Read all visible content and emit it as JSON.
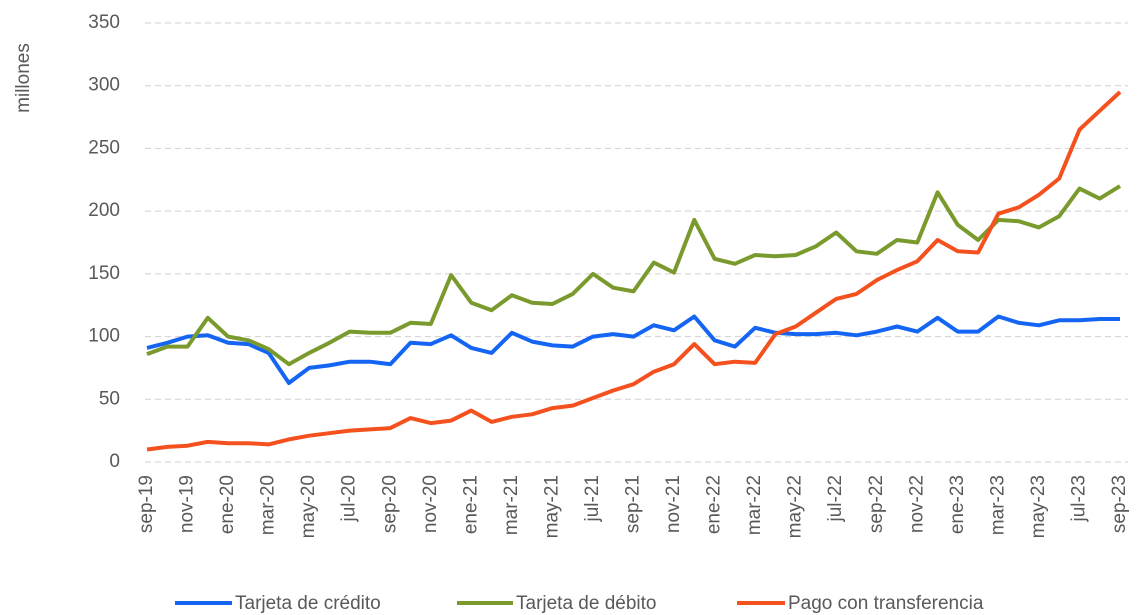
{
  "chart_data": {
    "type": "line",
    "y_label": "millones",
    "categories": [
      "sep-19",
      null,
      "nov-19",
      null,
      "ene-20",
      null,
      "mar-20",
      null,
      "may-20",
      null,
      "jul-20",
      null,
      "sep-20",
      null,
      "nov-20",
      null,
      "ene-21",
      null,
      "mar-21",
      null,
      "may-21",
      null,
      "jul-21",
      null,
      "sep-21",
      null,
      "nov-21",
      null,
      "ene-22",
      null,
      "mar-22",
      null,
      "may-22",
      null,
      "jul-22",
      null,
      "sep-22",
      null,
      "nov-22",
      null,
      "ene-23",
      null,
      "mar-23",
      null,
      "may-23",
      null,
      "jul-23",
      null,
      "sep-23"
    ],
    "series": [
      {
        "name": "Tarjeta de crédito",
        "color": "#1565f5",
        "values": [
          91,
          95,
          100,
          101,
          95,
          94,
          87,
          63,
          75,
          77,
          80,
          80,
          78,
          95,
          94,
          101,
          91,
          87,
          103,
          96,
          93,
          92,
          100,
          102,
          100,
          109,
          105,
          116,
          97,
          92,
          107,
          103,
          102,
          102,
          103,
          101,
          104,
          108,
          104,
          115,
          104,
          104,
          116,
          111,
          109,
          113,
          113,
          114,
          114
        ]
      },
      {
        "name": "Tarjeta de débito",
        "color": "#7a9a2e",
        "values": [
          86,
          92,
          92,
          115,
          100,
          97,
          90,
          78,
          87,
          95,
          104,
          103,
          103,
          111,
          110,
          149,
          127,
          121,
          133,
          127,
          126,
          134,
          150,
          139,
          136,
          159,
          151,
          193,
          162,
          158,
          165,
          164,
          165,
          172,
          183,
          168,
          166,
          177,
          175,
          215,
          189,
          177,
          193,
          192,
          187,
          196,
          218,
          210,
          220
        ]
      },
      {
        "name": "Pago con transferencia",
        "color": "#f4511e",
        "values": [
          10,
          12,
          13,
          16,
          15,
          15,
          14,
          18,
          21,
          23,
          25,
          26,
          27,
          35,
          31,
          33,
          41,
          32,
          36,
          38,
          43,
          45,
          51,
          57,
          62,
          72,
          78,
          94,
          78,
          80,
          79,
          102,
          108,
          119,
          130,
          134,
          145,
          153,
          160,
          177,
          168,
          167,
          198,
          203,
          213,
          226,
          265,
          280,
          295
        ]
      }
    ],
    "ylim": [
      0,
      350
    ],
    "yticks": [
      0,
      50,
      100,
      150,
      200,
      250,
      300,
      350
    ],
    "grid": true
  }
}
